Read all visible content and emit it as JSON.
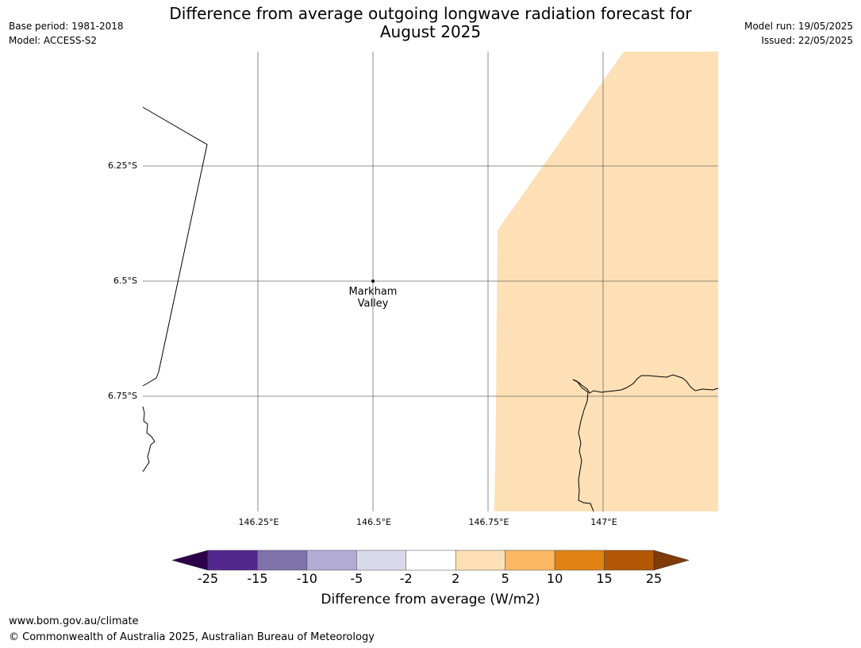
{
  "title_line1": "Difference from average outgoing longwave radiation forecast for",
  "title_line2": "August 2025",
  "meta_left": [
    "Base period: 1981-2018",
    "Model: ACCESS-S2"
  ],
  "meta_right": [
    "Model run: 19/05/2025",
    "Issued: 22/05/2025"
  ],
  "map": {
    "lat_labels": [
      "6.25°S",
      "6.5°S",
      "6.75°S"
    ],
    "lon_labels": [
      "146.25°E",
      "146.5°E",
      "146.75°E",
      "147°E"
    ],
    "place": {
      "name_line1": "Markham",
      "name_line2": "Valley"
    },
    "shaded_category": "2 to 5",
    "shade_color": "#fde0b6"
  },
  "colorbar": {
    "ticks": [
      "-25",
      "-15",
      "-10",
      "-5",
      "-2",
      "2",
      "5",
      "10",
      "15",
      "25"
    ],
    "colors": [
      "#54278f",
      "#8073ac",
      "#b2abd2",
      "#d8daeb",
      "#ffffff",
      "#fee0b6",
      "#fdb863",
      "#e08214",
      "#b35806"
    ],
    "low_extend_color": "#2d004b",
    "high_extend_color": "#7f3b08",
    "label": "Difference from average (W/m2)"
  },
  "footer": {
    "url": "www.bom.gov.au/climate",
    "copyright": "© Commonwealth of Australia 2025, Australian Bureau of Meteorology"
  }
}
